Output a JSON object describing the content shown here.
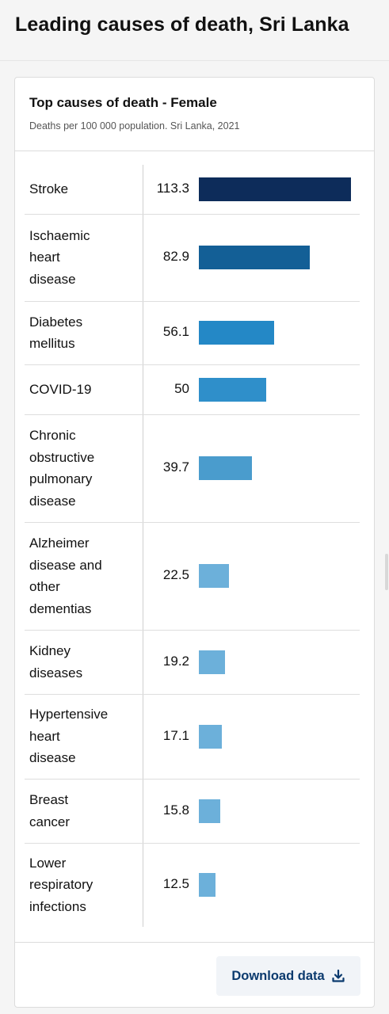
{
  "page": {
    "title": "Leading causes of death, Sri Lanka"
  },
  "card": {
    "title": "Top causes of death - Female",
    "subtitle": "Deaths per 100 000 population. Sri Lanka, 2021",
    "download_label": "Download data"
  },
  "colors": {
    "darkest": "#0d2c5a",
    "dark": "#135f96",
    "mid": "#2488c6",
    "light": "#4a9ccd",
    "lightest": "#6cb0da"
  },
  "chart_data": {
    "type": "bar",
    "orientation": "horizontal",
    "title": "Top causes of death - Female",
    "subtitle": "Deaths per 100 000 population. Sri Lanka, 2021",
    "categories": [
      "Stroke",
      "Ischaemic heart disease",
      "Diabetes mellitus",
      "COVID-19",
      "Chronic obstructive pulmonary disease",
      "Alzheimer disease and other dementias",
      "Kidney diseases",
      "Hypertensive heart disease",
      "Breast cancer",
      "Lower respiratory infections"
    ],
    "labels": [
      "Stroke",
      "Ischaemic\nheart\ndisease",
      "Diabetes\nmellitus",
      "COVID-19",
      "Chronic\nobstructive\npulmonary\ndisease",
      "Alzheimer\ndisease and\nother\ndementias",
      "Kidney\ndiseases",
      "Hypertensive\nheart\ndisease",
      "Breast\ncancer",
      "Lower\nrespiratory\ninfections"
    ],
    "value_labels": [
      "113.3",
      "82.9",
      "56.1",
      "50",
      "39.7",
      "22.5",
      "19.2",
      "17.1",
      "15.8",
      "12.5"
    ],
    "values": [
      113.3,
      82.9,
      56.1,
      50,
      39.7,
      22.5,
      19.2,
      17.1,
      15.8,
      12.5
    ],
    "bar_colors": [
      "#0d2c5a",
      "#135f96",
      "#2488c6",
      "#2f8fca",
      "#4a9ccd",
      "#6cb0da",
      "#6cb0da",
      "#6cb0da",
      "#6cb0da",
      "#6cb0da"
    ],
    "xlim": [
      0,
      113.3
    ],
    "grid": false,
    "legend": "none"
  }
}
